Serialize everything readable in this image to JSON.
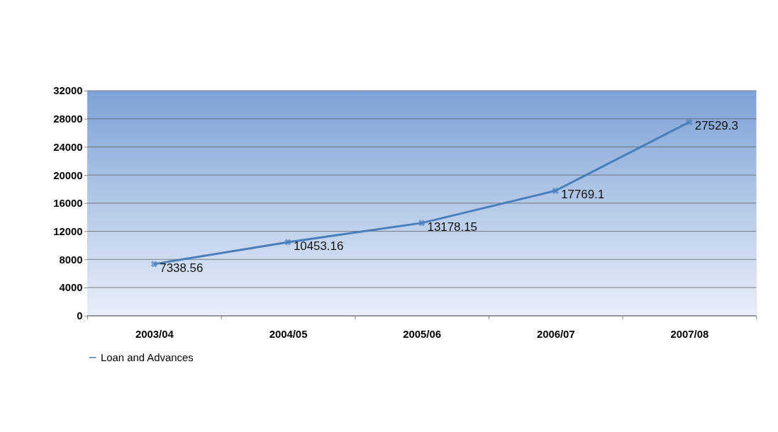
{
  "chart_data": {
    "type": "line",
    "categories": [
      "2003/04",
      "2004/05",
      "2005/06",
      "2006/07",
      "2007/08"
    ],
    "series": [
      {
        "name": "Loan and Advances",
        "color": "#4a7ebb",
        "values": [
          7338.56,
          10453.16,
          13178.15,
          17769.1,
          27529.3
        ]
      }
    ],
    "ylim": [
      0,
      32000
    ],
    "yticks": [
      0,
      4000,
      8000,
      12000,
      16000,
      20000,
      24000,
      28000,
      32000
    ],
    "grid": "y",
    "legend": "bottom",
    "marker": "cross",
    "line_style": "solid",
    "data_labels": true
  }
}
